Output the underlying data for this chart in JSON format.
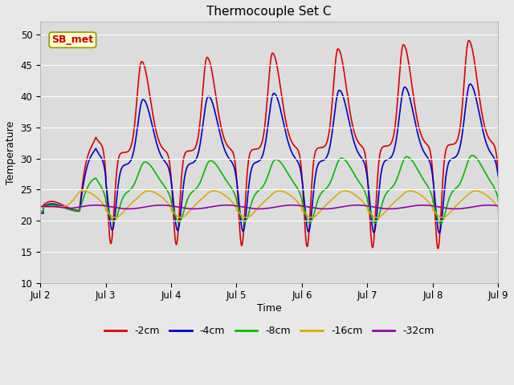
{
  "title": "Thermocouple Set C",
  "xlabel": "Time",
  "ylabel": "Temperature",
  "ylim": [
    10,
    52
  ],
  "y_tick_max": 52,
  "x_tick_labels": [
    "Jul 2",
    "Jul 3",
    "Jul 4",
    "Jul 5",
    "Jul 6",
    "Jul 7",
    "Jul 8",
    "Jul 9"
  ],
  "annotation_text": "SB_met",
  "annotation_color": "#cc0000",
  "annotation_bg": "#ffffcc",
  "fig_bg": "#e8e8e8",
  "plot_bg": "#dcdcdc",
  "series": [
    {
      "label": "-2cm",
      "color": "#dd0000",
      "lw": 1.2
    },
    {
      "label": "-4cm",
      "color": "#0000cc",
      "lw": 1.2
    },
    {
      "label": "-8cm",
      "color": "#00bb00",
      "lw": 1.2
    },
    {
      "label": "-16cm",
      "color": "#ddaa00",
      "lw": 1.2
    },
    {
      "label": "-32cm",
      "color": "#9900aa",
      "lw": 1.2
    }
  ],
  "grid_color": "#ffffff",
  "yticks": [
    10,
    15,
    20,
    25,
    30,
    35,
    40,
    45,
    50
  ]
}
